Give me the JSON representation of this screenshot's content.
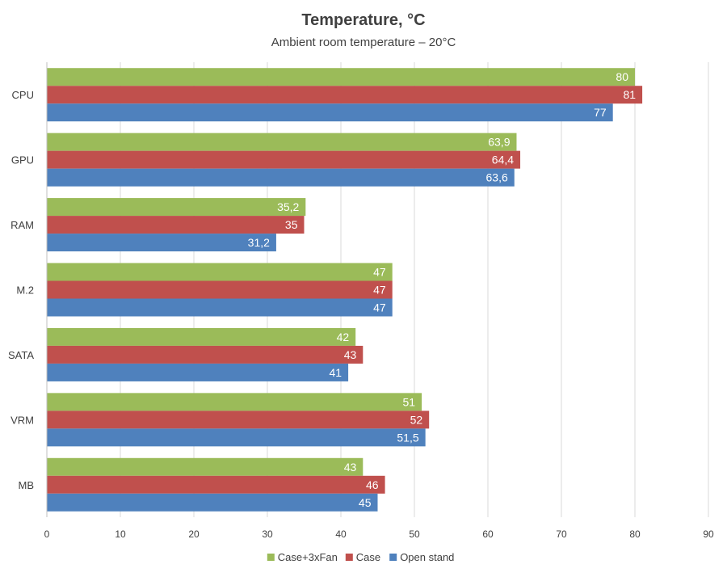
{
  "chart_data": {
    "type": "bar",
    "orientation": "horizontal",
    "title": "Temperature, °C",
    "subtitle": "Ambient room temperature – 20°C",
    "categories": [
      "CPU",
      "GPU",
      "RAM",
      "M.2",
      "SATA",
      "VRM",
      "MB"
    ],
    "series": [
      {
        "name": "Case+3xFan",
        "color": "#9bbb59",
        "values": [
          80,
          63.9,
          35.2,
          47,
          42,
          51,
          43
        ],
        "labels": [
          "80",
          "63,9",
          "35,2",
          "47",
          "42",
          "51",
          "43"
        ]
      },
      {
        "name": "Case",
        "color": "#c0504d",
        "values": [
          81,
          64.4,
          35,
          47,
          43,
          52,
          46
        ],
        "labels": [
          "81",
          "64,4",
          "35",
          "47",
          "43",
          "52",
          "46"
        ]
      },
      {
        "name": "Open stand",
        "color": "#4f81bd",
        "values": [
          77,
          63.6,
          31.2,
          47,
          41,
          51.5,
          45
        ],
        "labels": [
          "77",
          "63,6",
          "31,2",
          "47",
          "41",
          "51,5",
          "45"
        ]
      }
    ],
    "xlim": [
      0,
      90
    ],
    "xticks": [
      0,
      10,
      20,
      30,
      40,
      50,
      60,
      70,
      80,
      90
    ],
    "xlabel": "",
    "ylabel": "",
    "grid": true,
    "legend": "bottom-center"
  }
}
